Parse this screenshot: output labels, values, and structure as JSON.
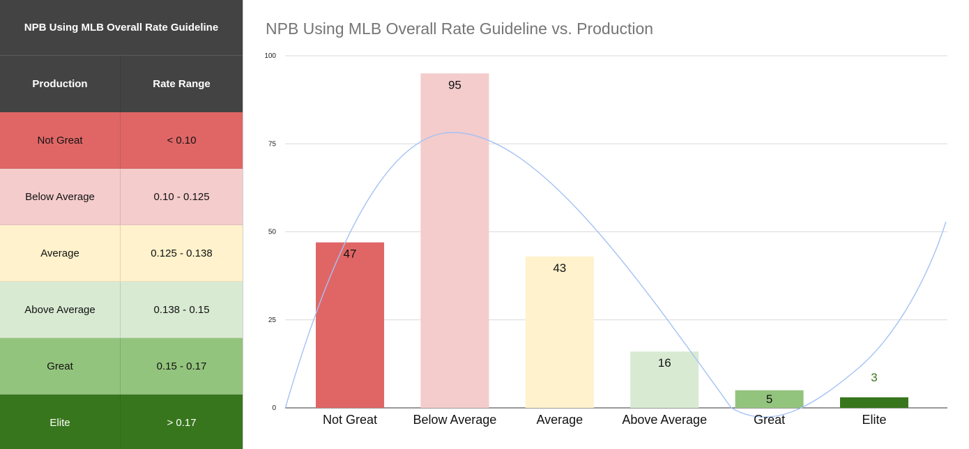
{
  "table": {
    "title": "NPB Using MLB Overall Rate Guideline",
    "header_production": "Production",
    "header_rate": "Rate Range",
    "rows": [
      {
        "production": "Not Great",
        "range": "< 0.10",
        "color": "#e06666"
      },
      {
        "production": "Below Average",
        "range": "0.10 - 0.125",
        "color": "#f4cccc"
      },
      {
        "production": "Average",
        "range": "0.125 - 0.138",
        "color": "#fff2cc"
      },
      {
        "production": "Above Average",
        "range": "0.138 - 0.15",
        "color": "#d9ead3"
      },
      {
        "production": "Great",
        "range": "0.15 - 0.17",
        "color": "#93c47d"
      },
      {
        "production": "Elite",
        "range": "> 0.17",
        "color": "#38761d"
      }
    ]
  },
  "chart_data": {
    "type": "bar",
    "title": "NPB Using MLB Overall Rate Guideline vs. Production",
    "categories": [
      "Not Great",
      "Below Average",
      "Average",
      "Above Average",
      "Great",
      "Elite"
    ],
    "values": [
      47,
      95,
      43,
      16,
      5,
      3
    ],
    "colors": [
      "#e06666",
      "#f4cccc",
      "#fff2cc",
      "#d9ead3",
      "#93c47d",
      "#38761d"
    ],
    "label_colors": [
      "#111111",
      "#111111",
      "#111111",
      "#111111",
      "#111111",
      "#38761d"
    ],
    "ylim": [
      0,
      100
    ],
    "yticks": [
      0,
      25,
      50,
      75,
      100
    ],
    "ytick_labels": [
      "0",
      "25",
      "50",
      "75",
      "100"
    ],
    "xlabel": "",
    "ylabel": "",
    "gridlines": true,
    "trendline": {
      "type": "polynomial",
      "color": "#a4c2f4"
    }
  }
}
